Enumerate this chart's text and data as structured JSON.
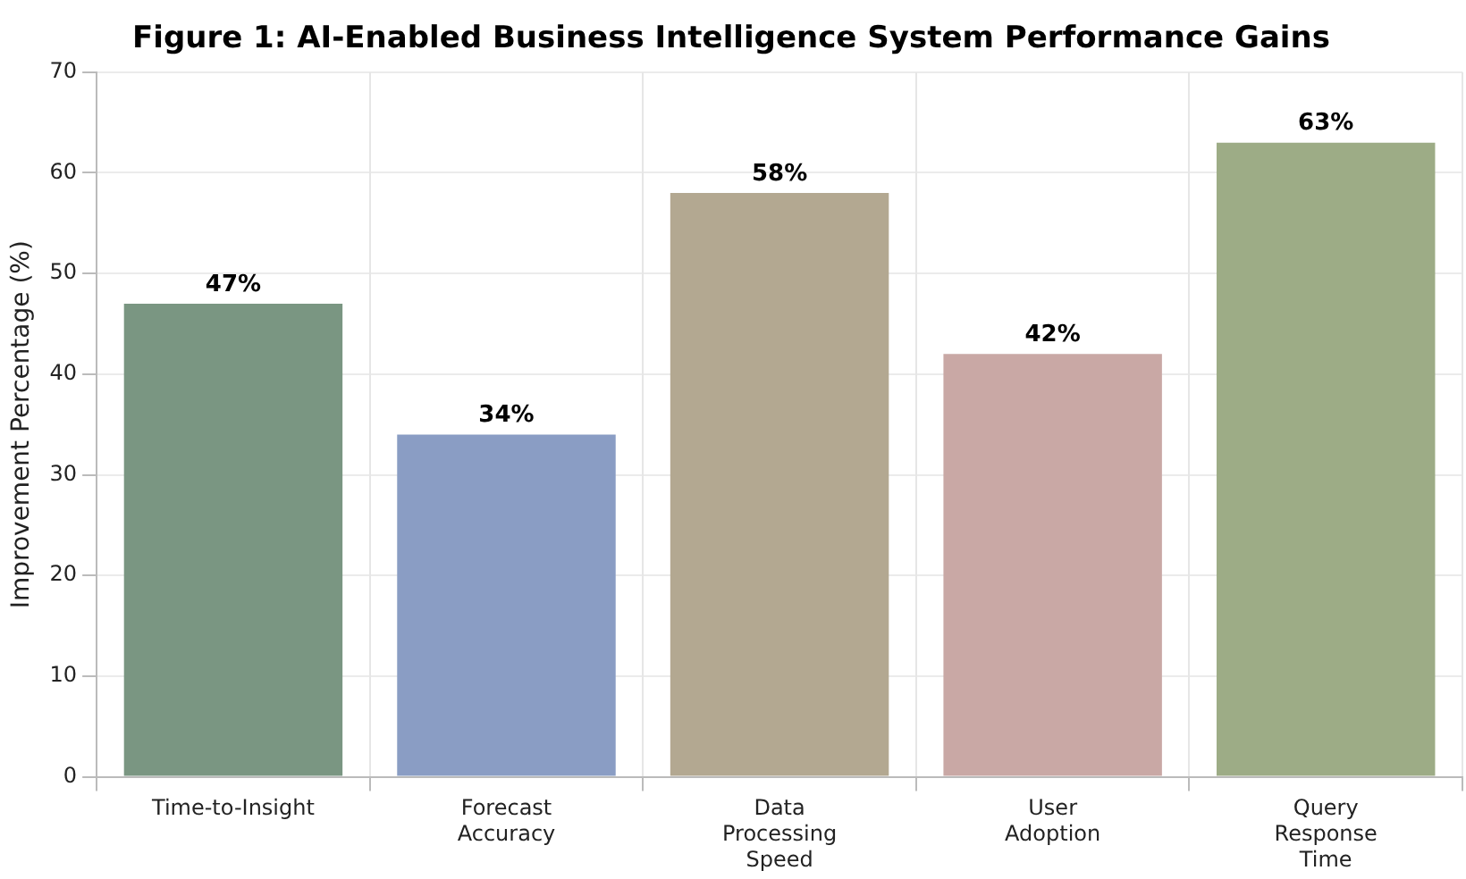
{
  "chart_data": {
    "type": "bar",
    "title": "Figure 1: AI-Enabled Business Intelligence System Performance Gains",
    "ylabel": "Improvement Percentage (%)",
    "categories": [
      "Time-to-Insight",
      "Forecast Accuracy",
      "Data Processing Speed",
      "User Adoption",
      "Query Response Time"
    ],
    "values": [
      47,
      34,
      58,
      42,
      63
    ],
    "colors": [
      "#7a9682",
      "#8a9dc4",
      "#b3a891",
      "#c9a8a5",
      "#9dac86"
    ],
    "value_labels": [
      "47%",
      "34%",
      "58%",
      "42%",
      "63%"
    ],
    "ylim": [
      0,
      70
    ],
    "yticks": [
      0,
      10,
      20,
      30,
      40,
      50,
      60,
      70
    ],
    "grid": true
  }
}
